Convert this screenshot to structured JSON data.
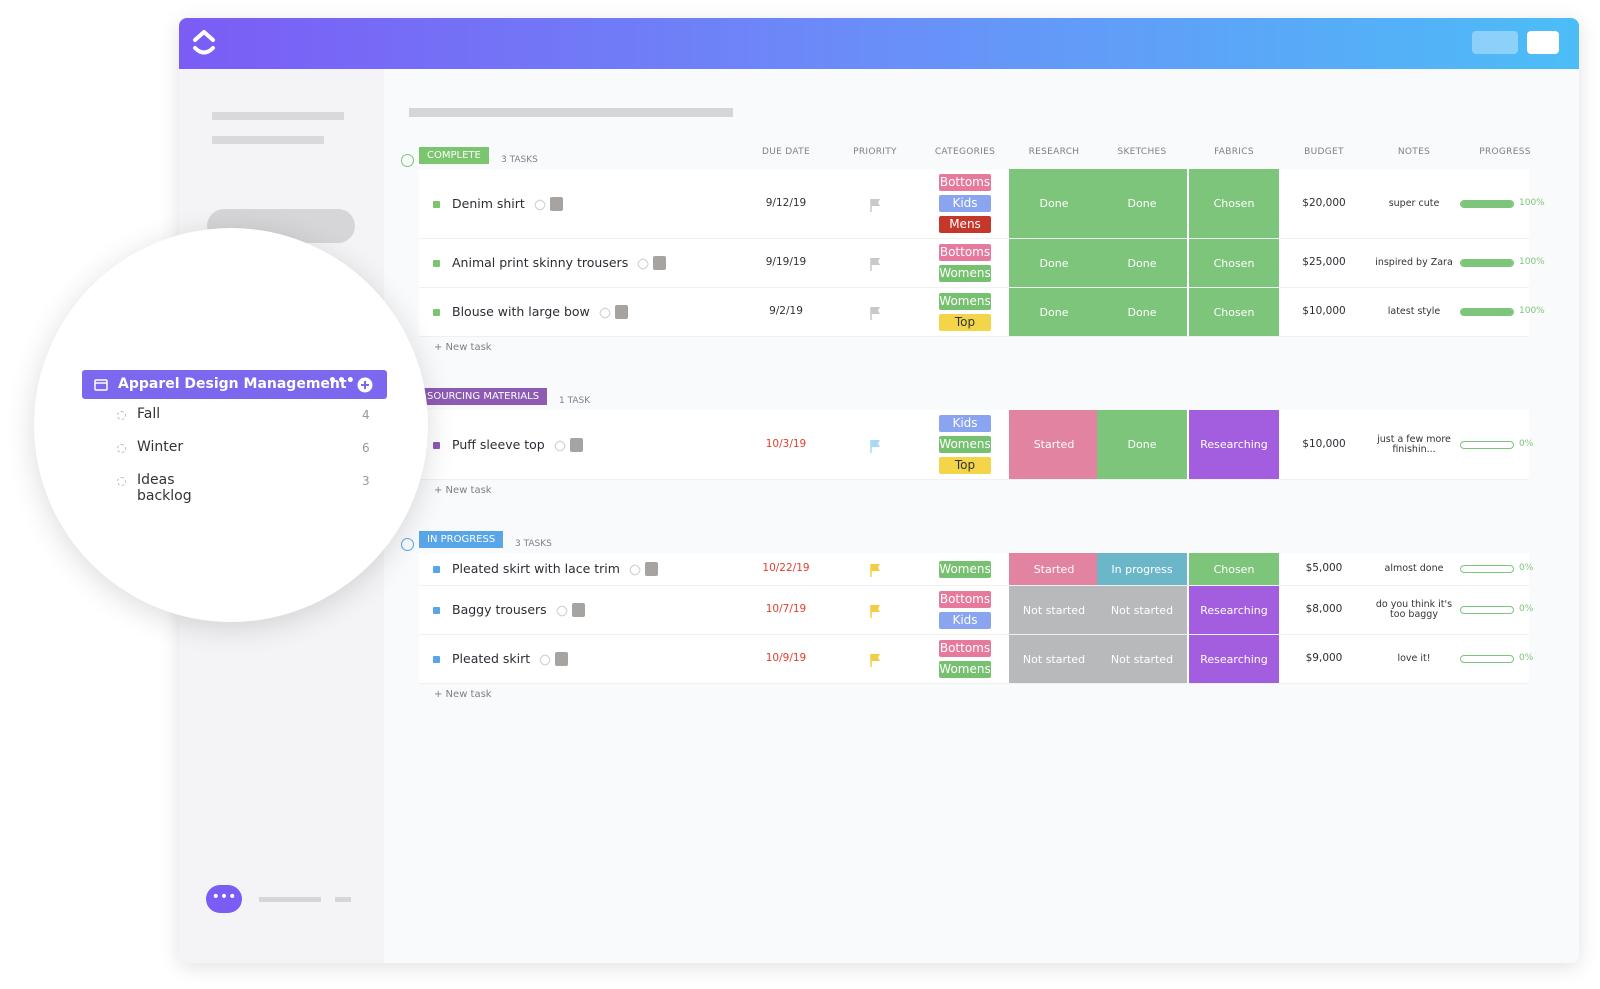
{
  "sidebar": {
    "folder": "Apparel Design Management",
    "lists": [
      {
        "name": "Fall",
        "count": 4
      },
      {
        "name": "Winter",
        "count": 6
      },
      {
        "name": "Ideas backlog",
        "count": 3
      }
    ]
  },
  "columns": [
    "DUE DATE",
    "PRIORITY",
    "CATEGORIES",
    "RESEARCH",
    "SKETCHES",
    "FABRICS",
    "BUDGET",
    "NOTES",
    "PROGRESS"
  ],
  "category_colors": {
    "Bottoms": "#e57a9c",
    "Kids": "#8aa4f0",
    "Mens": "#c6372b",
    "Womens": "#76c16f",
    "Top": "#f4d54a"
  },
  "status_colors": {
    "Done": "#7dc57a",
    "Chosen": "#7dc57a",
    "Started": "#e283a2",
    "In progress": "#6bb7c9",
    "Not started": "#b8b9bb",
    "Researching": "#a35ddf"
  },
  "groups": [
    {
      "status": "COMPLETE",
      "color": "#7bc56f",
      "count_label": "3 TASKS",
      "new_task": "+ New task",
      "tasks": [
        {
          "name": "Denim shirt",
          "due": "9/12/19",
          "due_color": "#333333",
          "flag": "#c9c9c9",
          "categories": [
            "Bottoms",
            "Kids",
            "Mens"
          ],
          "research": "Done",
          "sketches": "Done",
          "fabrics": "Chosen",
          "budget": "$20,000",
          "notes": "super cute",
          "progress": 100,
          "progress_label": "100%"
        },
        {
          "name": "Animal print skinny trousers",
          "due": "9/19/19",
          "due_color": "#333333",
          "flag": "#c9c9c9",
          "categories": [
            "Bottoms",
            "Womens"
          ],
          "research": "Done",
          "sketches": "Done",
          "fabrics": "Chosen",
          "budget": "$25,000",
          "notes": "inspired by Zara",
          "progress": 100,
          "progress_label": "100%"
        },
        {
          "name": "Blouse with large bow",
          "due": "9/2/19",
          "due_color": "#333333",
          "flag": "#c9c9c9",
          "categories": [
            "Womens",
            "Top"
          ],
          "research": "Done",
          "sketches": "Done",
          "fabrics": "Chosen",
          "budget": "$10,000",
          "notes": "latest style",
          "progress": 100,
          "progress_label": "100%"
        }
      ]
    },
    {
      "status": "SOURCING MATERIALS",
      "color": "#8d5bb4",
      "count_label": "1 TASK",
      "new_task": "+ New task",
      "tasks": [
        {
          "name": "Puff sleeve top",
          "due": "10/3/19",
          "due_color": "#e0402f",
          "flag": "#a9d9f2",
          "categories": [
            "Kids",
            "Womens",
            "Top"
          ],
          "research": "Started",
          "sketches": "Done",
          "fabrics": "Researching",
          "budget": "$10,000",
          "notes": "just a few more finishin...",
          "progress": 0,
          "progress_label": "0%"
        }
      ]
    },
    {
      "status": "IN PROGRESS",
      "color": "#58a6e8",
      "count_label": "3 TASKS",
      "new_task": "+ New task",
      "tasks": [
        {
          "name": "Pleated skirt with lace trim",
          "due": "10/22/19",
          "due_color": "#e0402f",
          "flag": "#f4cd47",
          "categories": [
            "Womens"
          ],
          "research": "Started",
          "sketches": "In progress",
          "fabrics": "Chosen",
          "budget": "$5,000",
          "notes": "almost done",
          "progress": 0,
          "progress_label": "0%"
        },
        {
          "name": "Baggy trousers",
          "due": "10/7/19",
          "due_color": "#e0402f",
          "flag": "#f4cd47",
          "categories": [
            "Bottoms",
            "Kids"
          ],
          "research": "Not started",
          "sketches": "Not started",
          "fabrics": "Researching",
          "budget": "$8,000",
          "notes": "do you think it's too baggy",
          "progress": 0,
          "progress_label": "0%"
        },
        {
          "name": "Pleated skirt",
          "due": "10/9/19",
          "due_color": "#e0402f",
          "flag": "#f4cd47",
          "categories": [
            "Bottoms",
            "Womens"
          ],
          "research": "Not started",
          "sketches": "Not started",
          "fabrics": "Researching",
          "budget": "$9,000",
          "notes": "love it!",
          "progress": 0,
          "progress_label": "0%"
        }
      ]
    }
  ]
}
